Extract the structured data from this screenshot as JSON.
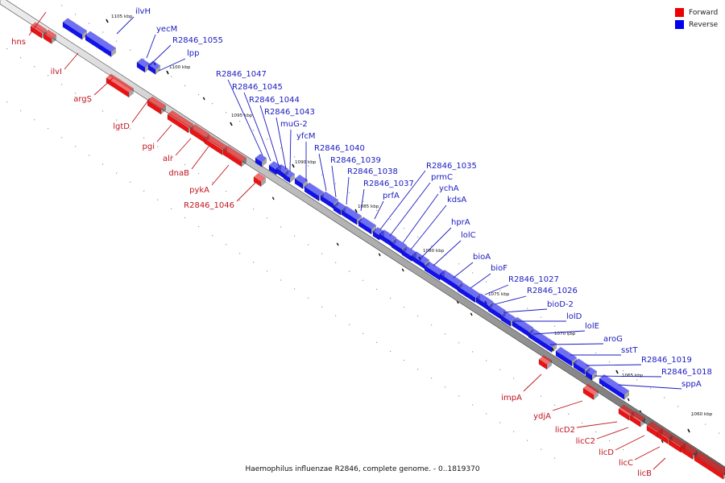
{
  "caption": "Haemophilus influenzae R2846, complete genome. - 0..1819370",
  "legend": {
    "forward_label": "Forward",
    "reverse_label": "Reverse",
    "forward_color": "#ee0000",
    "reverse_color": "#0000ee"
  },
  "colors": {
    "forward": "#ee1111",
    "forward_label": "#c0141e",
    "reverse": "#1111ee",
    "reverse_label": "#1a1ac0",
    "track": "#b8b8b8",
    "track_edge": "#404040"
  },
  "scale_labels": [
    "1105 kbp",
    "1100 kbp",
    "1095 kbp",
    "1090 kbp",
    "1085 kbp",
    "1080 kbp",
    "1075 kbp",
    "1070 kbp",
    "1065 kbp",
    "1060 kbp"
  ],
  "forward_genes": [
    "hns",
    "ilvI",
    "argS",
    "lgtD",
    "pgi",
    "alr",
    "dnaB",
    "pykA",
    "R2846_1046",
    "impA",
    "ydjA",
    "licD2",
    "licC2",
    "licD",
    "licC",
    "licB"
  ],
  "reverse_genes": [
    "ilvH",
    "yecM",
    "R2846_1055",
    "lpp",
    "R2846_1047",
    "R2846_1045",
    "R2846_1044",
    "R2846_1043",
    "muG-2",
    "yfcM",
    "R2846_1040",
    "R2846_1039",
    "R2846_1038",
    "R2846_1037",
    "prfA",
    "R2846_1035",
    "prmC",
    "ychA",
    "kdsA",
    "hprA",
    "lolC",
    "bioA",
    "bioF",
    "R2846_1027",
    "R2846_1026",
    "bioD-2",
    "lolD",
    "lolE",
    "aroG",
    "sstT",
    "R2846_1019",
    "R2846_1018",
    "sppA"
  ]
}
